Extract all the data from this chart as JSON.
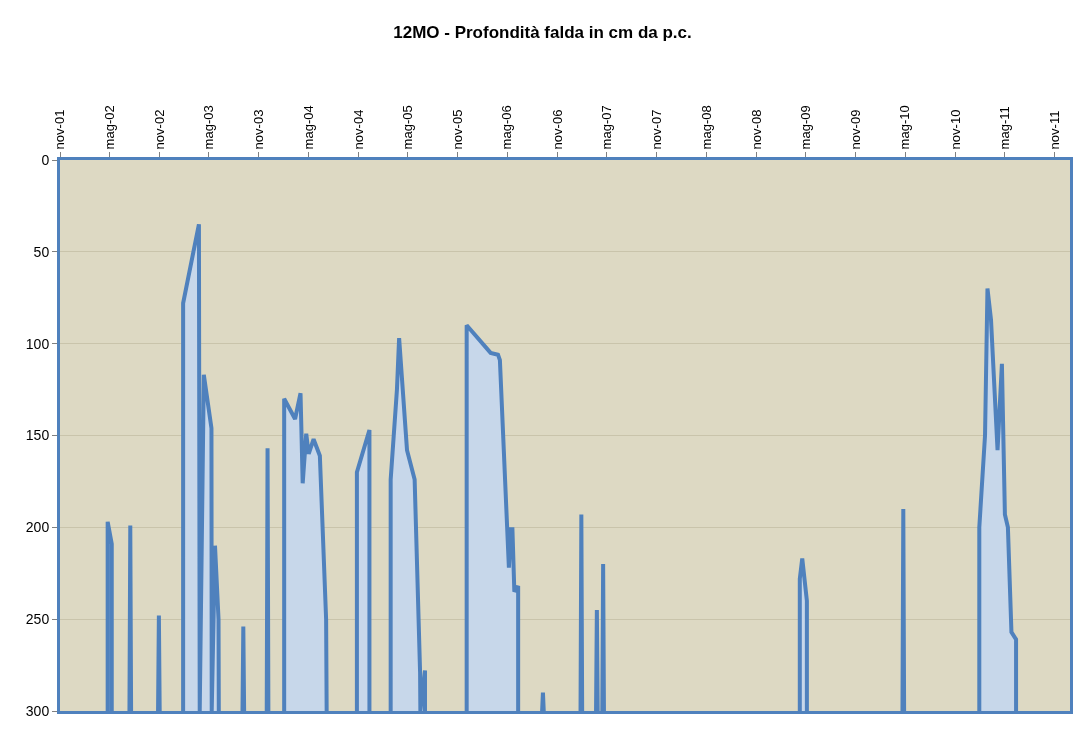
{
  "chart_data": {
    "type": "area",
    "title": "12MO - Profondità falda in cm da p.c.",
    "x": [
      "2002-04-25",
      "2002-04-25",
      "2002-05-10",
      "2002-05-10",
      "2002-06-01",
      "2002-07-14",
      "2002-07-17",
      "2002-07-20",
      "2002-09-01",
      "2002-10-27",
      "2002-10-30",
      "2002-11-02",
      "2002-12-01",
      "2003-01-27",
      "2003-01-27",
      "2003-03-26",
      "2003-03-29",
      "2003-04-13",
      "2003-05-11",
      "2003-05-12",
      "2003-05-24",
      "2003-06-06",
      "2003-06-07",
      "2003-08-01",
      "2003-09-02",
      "2003-09-05",
      "2003-09-08",
      "2003-11-01",
      "2003-11-30",
      "2003-12-03",
      "2003-12-06",
      "2004-01-01",
      "2004-02-02",
      "2004-02-02",
      "2004-03-13",
      "2004-04-02",
      "2004-04-10",
      "2004-04-23",
      "2004-05-02",
      "2004-05-20",
      "2004-06-12",
      "2004-07-05",
      "2004-07-07",
      "2004-09-01",
      "2004-10-26",
      "2004-10-26",
      "2004-12-11",
      "2004-12-11",
      "2005-01-15",
      "2005-02-27",
      "2005-02-27",
      "2005-03-22",
      "2005-03-30",
      "2005-04-28",
      "2005-05-26",
      "2005-06-15",
      "2005-06-16",
      "2005-07-03",
      "2005-07-03",
      "2005-07-04",
      "2005-09-01",
      "2005-12-03",
      "2005-12-03",
      "2006-03-01",
      "2006-03-28",
      "2006-04-04",
      "2006-05-07",
      "2006-05-14",
      "2006-05-20",
      "2006-05-27",
      "2006-06-10",
      "2006-06-10",
      "2006-08-01",
      "2006-09-06",
      "2006-09-09",
      "2006-09-12",
      "2006-11-01",
      "2007-01-25",
      "2007-01-28",
      "2007-01-31",
      "2007-02-20",
      "2007-03-23",
      "2007-03-26",
      "2007-03-29",
      "2007-04-05",
      "2007-04-15",
      "2007-04-18",
      "2007-04-21",
      "2008-06-01",
      "2009-04-09",
      "2009-04-09",
      "2009-04-18",
      "2009-05-05",
      "2009-05-05",
      "2009-09-01",
      "2010-04-21",
      "2010-04-24",
      "2010-04-27",
      "2010-10-01",
      "2011-01-28",
      "2011-01-28",
      "2011-02-18",
      "2011-02-27",
      "2011-03-12",
      "2011-04-05",
      "2011-04-21",
      "2011-05-02",
      "2011-05-13",
      "2011-05-26",
      "2011-06-12",
      "2011-06-12"
    ],
    "values": [
      300,
      197,
      209,
      300,
      null,
      300,
      199,
      300,
      null,
      300,
      248,
      300,
      null,
      300,
      78,
      35,
      300,
      117,
      146,
      300,
      210,
      250,
      300,
      null,
      300,
      254,
      300,
      null,
      300,
      157,
      300,
      null,
      300,
      130,
      141,
      127,
      176,
      149,
      160,
      152,
      161,
      250,
      300,
      null,
      300,
      170,
      147,
      300,
      null,
      300,
      174,
      125,
      97,
      158,
      174,
      279,
      300,
      278,
      300,
      null,
      null,
      300,
      90,
      105,
      106,
      109,
      222,
      201,
      201,
      235,
      232,
      300,
      null,
      300,
      290,
      300,
      null,
      300,
      193,
      300,
      null,
      300,
      245,
      300,
      null,
      300,
      220,
      300,
      null,
      300,
      228,
      217,
      240,
      300,
      null,
      300,
      190,
      300,
      null,
      300,
      200,
      150,
      70,
      87,
      158,
      111,
      193,
      200,
      257,
      261,
      300
    ],
    "color": "#4f81bd",
    "ylim": [
      300,
      0
    ],
    "yticks": [
      0,
      50,
      100,
      150,
      200,
      250,
      300
    ],
    "xlim": [
      "2001-11-01",
      "2011-12-27"
    ],
    "xticks": [
      {
        "value": "2001-11-01",
        "label": "nov-01"
      },
      {
        "value": "2002-05-01",
        "label": "mag-02"
      },
      {
        "value": "2002-11-01",
        "label": "nov-02"
      },
      {
        "value": "2003-05-01",
        "label": "mag-03"
      },
      {
        "value": "2003-11-01",
        "label": "nov-03"
      },
      {
        "value": "2004-05-01",
        "label": "mag-04"
      },
      {
        "value": "2004-11-01",
        "label": "nov-04"
      },
      {
        "value": "2005-05-01",
        "label": "mag-05"
      },
      {
        "value": "2005-11-01",
        "label": "nov-05"
      },
      {
        "value": "2006-05-01",
        "label": "mag-06"
      },
      {
        "value": "2006-11-01",
        "label": "nov-06"
      },
      {
        "value": "2007-05-01",
        "label": "mag-07"
      },
      {
        "value": "2007-11-01",
        "label": "nov-07"
      },
      {
        "value": "2008-05-01",
        "label": "mag-08"
      },
      {
        "value": "2008-11-01",
        "label": "nov-08"
      },
      {
        "value": "2009-05-01",
        "label": "mag-09"
      },
      {
        "value": "2009-11-01",
        "label": "nov-09"
      },
      {
        "value": "2010-05-01",
        "label": "mag-10"
      },
      {
        "value": "2010-11-01",
        "label": "nov-10"
      },
      {
        "value": "2011-05-01",
        "label": "mag-11"
      },
      {
        "value": "2011-11-01",
        "label": "nov-11"
      }
    ],
    "grid": "y",
    "legend": false
  }
}
